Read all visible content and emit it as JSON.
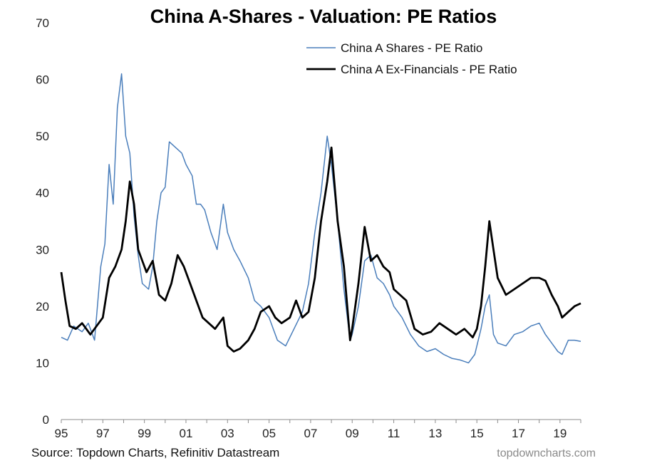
{
  "chart_data": {
    "type": "line",
    "title": "China A-Shares - Valuation: PE Ratios",
    "xlabel": "",
    "ylabel": "",
    "ylim": [
      0,
      70
    ],
    "xlim": [
      1995,
      2020
    ],
    "yticks": [
      0,
      10,
      20,
      30,
      40,
      50,
      60,
      70
    ],
    "xticks": [
      {
        "value": 1995,
        "label": "95"
      },
      {
        "value": 1997,
        "label": "97"
      },
      {
        "value": 1999,
        "label": "99"
      },
      {
        "value": 2001,
        "label": "01"
      },
      {
        "value": 2003,
        "label": "03"
      },
      {
        "value": 2005,
        "label": "05"
      },
      {
        "value": 2007,
        "label": "07"
      },
      {
        "value": 2009,
        "label": "09"
      },
      {
        "value": 2011,
        "label": "11"
      },
      {
        "value": 2013,
        "label": "13"
      },
      {
        "value": 2015,
        "label": "15"
      },
      {
        "value": 2017,
        "label": "17"
      },
      {
        "value": 2019,
        "label": "19"
      }
    ],
    "legend_position": "top-right",
    "grid": false,
    "series": [
      {
        "name": "China A Shares - PE Ratio",
        "color": "#4a7ebb",
        "x": [
          1995.0,
          1995.3,
          1995.6,
          1996.0,
          1996.3,
          1996.6,
          1996.9,
          1997.1,
          1997.3,
          1997.5,
          1997.7,
          1997.9,
          1998.1,
          1998.3,
          1998.5,
          1998.7,
          1998.9,
          1999.2,
          1999.4,
          1999.6,
          1999.8,
          2000.0,
          2000.2,
          2000.5,
          2000.8,
          2001.0,
          2001.3,
          2001.5,
          2001.7,
          2001.9,
          2002.2,
          2002.5,
          2002.8,
          2003.0,
          2003.3,
          2003.6,
          2004.0,
          2004.3,
          2004.6,
          2005.0,
          2005.4,
          2005.8,
          2006.2,
          2006.6,
          2006.9,
          2007.2,
          2007.5,
          2007.8,
          2008.0,
          2008.3,
          2008.6,
          2008.9,
          2009.0,
          2009.3,
          2009.6,
          2009.9,
          2010.2,
          2010.5,
          2010.8,
          2011.0,
          2011.4,
          2011.8,
          2012.2,
          2012.6,
          2013.0,
          2013.4,
          2013.8,
          2014.2,
          2014.6,
          2014.9,
          2015.2,
          2015.4,
          2015.6,
          2015.8,
          2016.0,
          2016.4,
          2016.8,
          2017.2,
          2017.6,
          2018.0,
          2018.3,
          2018.6,
          2018.9,
          2019.1,
          2019.4,
          2019.7,
          2020.0
        ],
        "values": [
          14.5,
          14,
          16.5,
          15.5,
          17,
          14,
          27,
          31,
          45,
          38,
          55,
          61,
          50,
          47,
          36,
          29,
          24,
          23,
          27,
          35,
          40,
          41,
          49,
          48,
          47,
          45,
          43,
          38,
          38,
          37,
          33,
          30,
          38,
          33,
          30,
          28,
          25,
          21,
          20,
          18,
          14,
          13,
          16,
          19,
          24,
          33,
          40,
          50,
          45,
          35,
          23,
          14,
          15,
          20,
          28,
          29,
          25,
          24,
          22,
          20,
          18,
          15,
          13,
          12,
          12.5,
          11.5,
          10.8,
          10.5,
          10,
          11.5,
          16,
          20,
          22,
          15,
          13.5,
          13,
          15,
          15.5,
          16.5,
          17,
          15,
          13.5,
          12,
          11.5,
          14,
          14,
          13.8
        ]
      },
      {
        "name": "China A Ex-Financials - PE Ratio",
        "color": "#000000",
        "x": [
          1995.0,
          1995.2,
          1995.4,
          1995.7,
          1996.0,
          1996.4,
          1996.8,
          1997.0,
          1997.3,
          1997.6,
          1997.9,
          1998.1,
          1998.3,
          1998.5,
          1998.7,
          1998.9,
          1999.1,
          1999.4,
          1999.7,
          2000.0,
          2000.3,
          2000.6,
          2000.9,
          2001.2,
          2001.5,
          2001.8,
          2002.1,
          2002.4,
          2002.8,
          2003.0,
          2003.3,
          2003.6,
          2004.0,
          2004.3,
          2004.6,
          2005.0,
          2005.3,
          2005.6,
          2006.0,
          2006.3,
          2006.6,
          2006.9,
          2007.2,
          2007.5,
          2007.8,
          2008.0,
          2008.3,
          2008.6,
          2008.9,
          2009.0,
          2009.3,
          2009.6,
          2009.9,
          2010.2,
          2010.5,
          2010.8,
          2011.0,
          2011.3,
          2011.6,
          2012.0,
          2012.4,
          2012.8,
          2013.2,
          2013.6,
          2014.0,
          2014.4,
          2014.8,
          2015.0,
          2015.2,
          2015.4,
          2015.6,
          2015.8,
          2016.0,
          2016.4,
          2016.8,
          2017.2,
          2017.6,
          2018.0,
          2018.3,
          2018.6,
          2018.9,
          2019.1,
          2019.4,
          2019.7,
          2020.0
        ],
        "values": [
          26,
          21,
          16.5,
          16,
          17,
          15,
          17,
          18,
          25,
          27,
          30,
          35,
          42,
          38,
          30,
          28,
          26,
          28,
          22,
          21,
          24,
          29,
          27,
          24,
          21,
          18,
          17,
          16,
          18,
          13,
          12,
          12.5,
          14,
          16,
          19,
          20,
          18,
          17,
          18,
          21,
          18,
          19,
          25,
          35,
          42,
          48,
          35,
          27,
          14,
          16,
          24,
          34,
          28,
          29,
          27,
          26,
          23,
          22,
          21,
          16,
          15,
          15.5,
          17,
          16,
          15,
          16,
          14.5,
          16,
          20,
          27,
          35,
          30,
          25,
          22,
          23,
          24,
          25,
          25,
          24.5,
          22,
          20,
          18,
          19,
          20,
          20.5
        ]
      }
    ]
  },
  "footer": {
    "source": "Source: Topdown Charts, Refinitiv Datastream",
    "credit": "topdowncharts.com"
  }
}
